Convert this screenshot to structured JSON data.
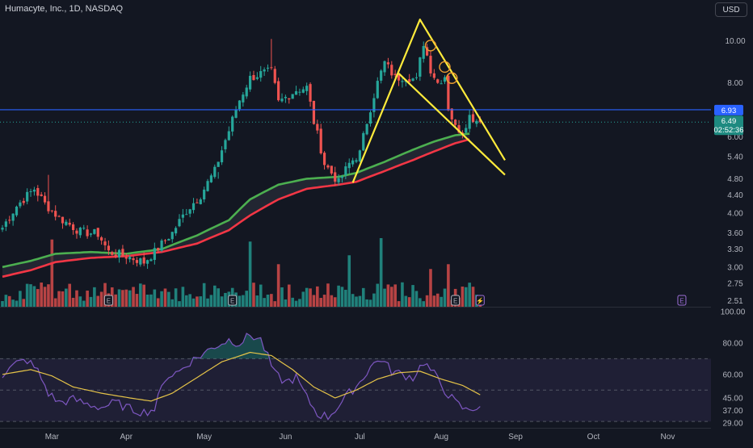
{
  "header": {
    "title": "Humacyte, Inc., 1D, NASDAQ",
    "currency_label": "USD"
  },
  "price_badges": {
    "resistance_label": "6.93",
    "last_price": "6.49",
    "countdown": "02:52:36"
  },
  "colors": {
    "background": "#131722",
    "up": "#26a69a",
    "down": "#ef5350",
    "ema_fast": "#4caf50",
    "ema_slow": "#f23645",
    "pattern": "#ffeb3b",
    "resistance": "#2962ff",
    "rsi": "#7e57c2",
    "rsi_ma": "#e5c348",
    "grid_text": "#b2b5be"
  },
  "events": {
    "earnings_marker": "E",
    "split_marker": "⚡"
  },
  "chart_data": [
    {
      "type": "candlestick",
      "title": "Humacyte, Inc., 1D, NASDAQ",
      "scale": "log",
      "ylim": [
        2.45,
        11.5
      ],
      "xlabel": "",
      "ylabel": "",
      "x_ticks": [
        "Mar",
        "Apr",
        "May",
        "Jun",
        "Jul",
        "Aug",
        "Sep",
        "Oct",
        "Nov"
      ],
      "y_ticks": [
        "10.00",
        "8.00",
        "7.00",
        "6.00",
        "5.40",
        "4.80",
        "4.40",
        "4.00",
        "3.60",
        "3.30",
        "3.00",
        "2.75",
        "2.51"
      ],
      "horizontal_line": 6.93,
      "last_close": 6.49,
      "close_anchors": [
        [
          0,
          3.7
        ],
        [
          4,
          4.15
        ],
        [
          9,
          4.55
        ],
        [
          12,
          4.2
        ],
        [
          16,
          3.9
        ],
        [
          22,
          3.62
        ],
        [
          27,
          3.58
        ],
        [
          30,
          3.25
        ],
        [
          35,
          3.18
        ],
        [
          40,
          3.08
        ],
        [
          43,
          3.25
        ],
        [
          48,
          3.6
        ],
        [
          52,
          4.05
        ],
        [
          56,
          4.4
        ],
        [
          60,
          5.0
        ],
        [
          64,
          6.2
        ],
        [
          67,
          7.3
        ],
        [
          70,
          8.2
        ],
        [
          73,
          8.4
        ],
        [
          76,
          8.5
        ],
        [
          78,
          7.2
        ],
        [
          80,
          7.4
        ],
        [
          83,
          7.7
        ],
        [
          86,
          7.8
        ],
        [
          88,
          6.5
        ],
        [
          91,
          5.2
        ],
        [
          95,
          4.7
        ],
        [
          98,
          5.2
        ],
        [
          101,
          5.5
        ],
        [
          103,
          6.5
        ],
        [
          106,
          8.0
        ],
        [
          108,
          8.9
        ],
        [
          111,
          8.2
        ],
        [
          114,
          8.3
        ],
        [
          117,
          8.1
        ],
        [
          119,
          9.9
        ],
        [
          121,
          8.6
        ],
        [
          123,
          8.0
        ],
        [
          125,
          8.3
        ],
        [
          126,
          7.0
        ],
        [
          128,
          6.3
        ],
        [
          130,
          6.2
        ],
        [
          132,
          6.7
        ],
        [
          135,
          6.49
        ]
      ],
      "wick_highlights": [
        [
          13,
          4.9
        ],
        [
          76,
          10.1
        ],
        [
          61,
          4.8
        ]
      ],
      "ema_fast": [
        [
          0,
          3.0
        ],
        [
          8,
          3.1
        ],
        [
          15,
          3.22
        ],
        [
          25,
          3.25
        ],
        [
          35,
          3.22
        ],
        [
          45,
          3.3
        ],
        [
          55,
          3.55
        ],
        [
          64,
          3.85
        ],
        [
          70,
          4.3
        ],
        [
          78,
          4.65
        ],
        [
          86,
          4.8
        ],
        [
          95,
          4.85
        ],
        [
          100,
          4.95
        ],
        [
          108,
          5.25
        ],
        [
          116,
          5.6
        ],
        [
          122,
          5.85
        ],
        [
          128,
          6.05
        ],
        [
          132,
          6.1
        ]
      ],
      "ema_slow": [
        [
          0,
          2.85
        ],
        [
          8,
          2.95
        ],
        [
          15,
          3.08
        ],
        [
          25,
          3.15
        ],
        [
          35,
          3.18
        ],
        [
          45,
          3.25
        ],
        [
          55,
          3.4
        ],
        [
          64,
          3.65
        ],
        [
          70,
          3.95
        ],
        [
          78,
          4.3
        ],
        [
          86,
          4.55
        ],
        [
          95,
          4.65
        ],
        [
          100,
          4.72
        ],
        [
          108,
          5.0
        ],
        [
          116,
          5.3
        ],
        [
          122,
          5.55
        ],
        [
          128,
          5.8
        ],
        [
          132,
          5.92
        ]
      ],
      "pattern_lines": [
        [
          [
            99,
            4.7
          ],
          [
            118,
            11.2
          ],
          [
            142,
            5.3
          ]
        ],
        [
          [
            112,
            8.4
          ],
          [
            142,
            4.9
          ]
        ]
      ],
      "pattern_circles": [
        [
          121,
          9.75
        ],
        [
          125,
          8.7
        ],
        [
          127,
          8.2
        ]
      ],
      "volume_max": 1.0,
      "volume_spikes": [
        [
          14,
          0.98
        ],
        [
          70,
          0.95
        ],
        [
          78,
          0.62
        ],
        [
          98,
          0.75
        ],
        [
          107,
          1.0
        ],
        [
          121,
          0.55
        ],
        [
          126,
          0.62
        ]
      ],
      "earnings_days": [
        30,
        65,
        128
      ],
      "split_day": 135,
      "future_earnings_day": 192
    },
    {
      "type": "line",
      "title": "",
      "xlabel": "",
      "ylabel": "",
      "ylim": [
        27,
        101
      ],
      "y_ticks": [
        "100.00",
        "80.00",
        "60.00",
        "45.00",
        "37.00",
        "29.00"
      ],
      "bands": {
        "upper": 70,
        "middle": 50,
        "lower": 30
      },
      "series": [
        {
          "id": "rsi",
          "points": [
            [
              0,
              60
            ],
            [
              4,
              67
            ],
            [
              7,
              69
            ],
            [
              10,
              62
            ],
            [
              13,
              48
            ],
            [
              16,
              42
            ],
            [
              20,
              44
            ],
            [
              24,
              41
            ],
            [
              28,
              39
            ],
            [
              32,
              42
            ],
            [
              36,
              38
            ],
            [
              40,
              36
            ],
            [
              43,
              38
            ],
            [
              46,
              58
            ],
            [
              50,
              62
            ],
            [
              53,
              68
            ],
            [
              56,
              72
            ],
            [
              60,
              78
            ],
            [
              64,
              82
            ],
            [
              67,
              80
            ],
            [
              70,
              85
            ],
            [
              73,
              82
            ],
            [
              77,
              60
            ],
            [
              80,
              55
            ],
            [
              83,
              58
            ],
            [
              86,
              45
            ],
            [
              89,
              35
            ],
            [
              92,
              33
            ],
            [
              95,
              40
            ],
            [
              98,
              48
            ],
            [
              101,
              55
            ],
            [
              104,
              65
            ],
            [
              107,
              70
            ],
            [
              110,
              62
            ],
            [
              113,
              60
            ],
            [
              116,
              58
            ],
            [
              119,
              68
            ],
            [
              122,
              60
            ],
            [
              125,
              50
            ],
            [
              128,
              42
            ],
            [
              131,
              37
            ],
            [
              135,
              40
            ]
          ]
        },
        {
          "id": "rsi_ma",
          "points": [
            [
              0,
              60
            ],
            [
              8,
              63
            ],
            [
              14,
              59
            ],
            [
              20,
              52
            ],
            [
              28,
              48
            ],
            [
              36,
              45
            ],
            [
              42,
              43
            ],
            [
              48,
              48
            ],
            [
              55,
              58
            ],
            [
              62,
              68
            ],
            [
              70,
              74
            ],
            [
              76,
              72
            ],
            [
              82,
              63
            ],
            [
              88,
              52
            ],
            [
              94,
              45
            ],
            [
              100,
              50
            ],
            [
              106,
              57
            ],
            [
              112,
              61
            ],
            [
              118,
              62
            ],
            [
              124,
              57
            ],
            [
              130,
              53
            ],
            [
              135,
              47
            ]
          ]
        }
      ]
    }
  ]
}
